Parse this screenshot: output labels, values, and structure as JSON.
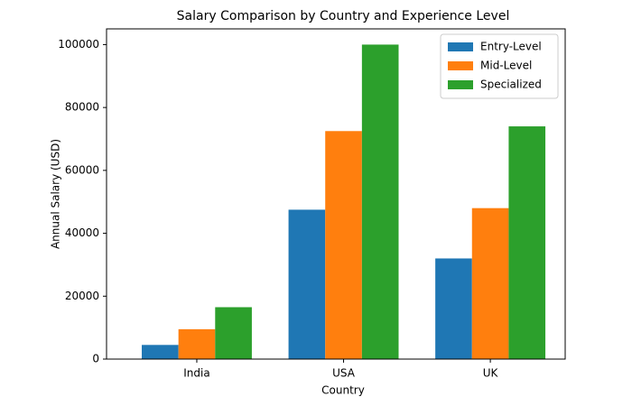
{
  "chart_data": {
    "type": "bar",
    "title": "Salary Comparison by Country and Experience Level",
    "x_label": "Country",
    "y_label": "Annual Salary (USD)",
    "categories": [
      "India",
      "USA",
      "UK"
    ],
    "series": [
      {
        "name": "Entry-Level",
        "color": "#1f77b4",
        "values": [
          4500,
          47500,
          32000
        ]
      },
      {
        "name": "Mid-Level",
        "color": "#ff7f0e",
        "values": [
          9500,
          72500,
          48000
        ]
      },
      {
        "name": "Specialized",
        "color": "#2ca02c",
        "values": [
          16500,
          100000,
          74000
        ]
      }
    ],
    "ylim": [
      0,
      105000
    ],
    "yticks": [
      0,
      20000,
      40000,
      60000,
      80000,
      100000
    ],
    "legend": "upper right"
  }
}
